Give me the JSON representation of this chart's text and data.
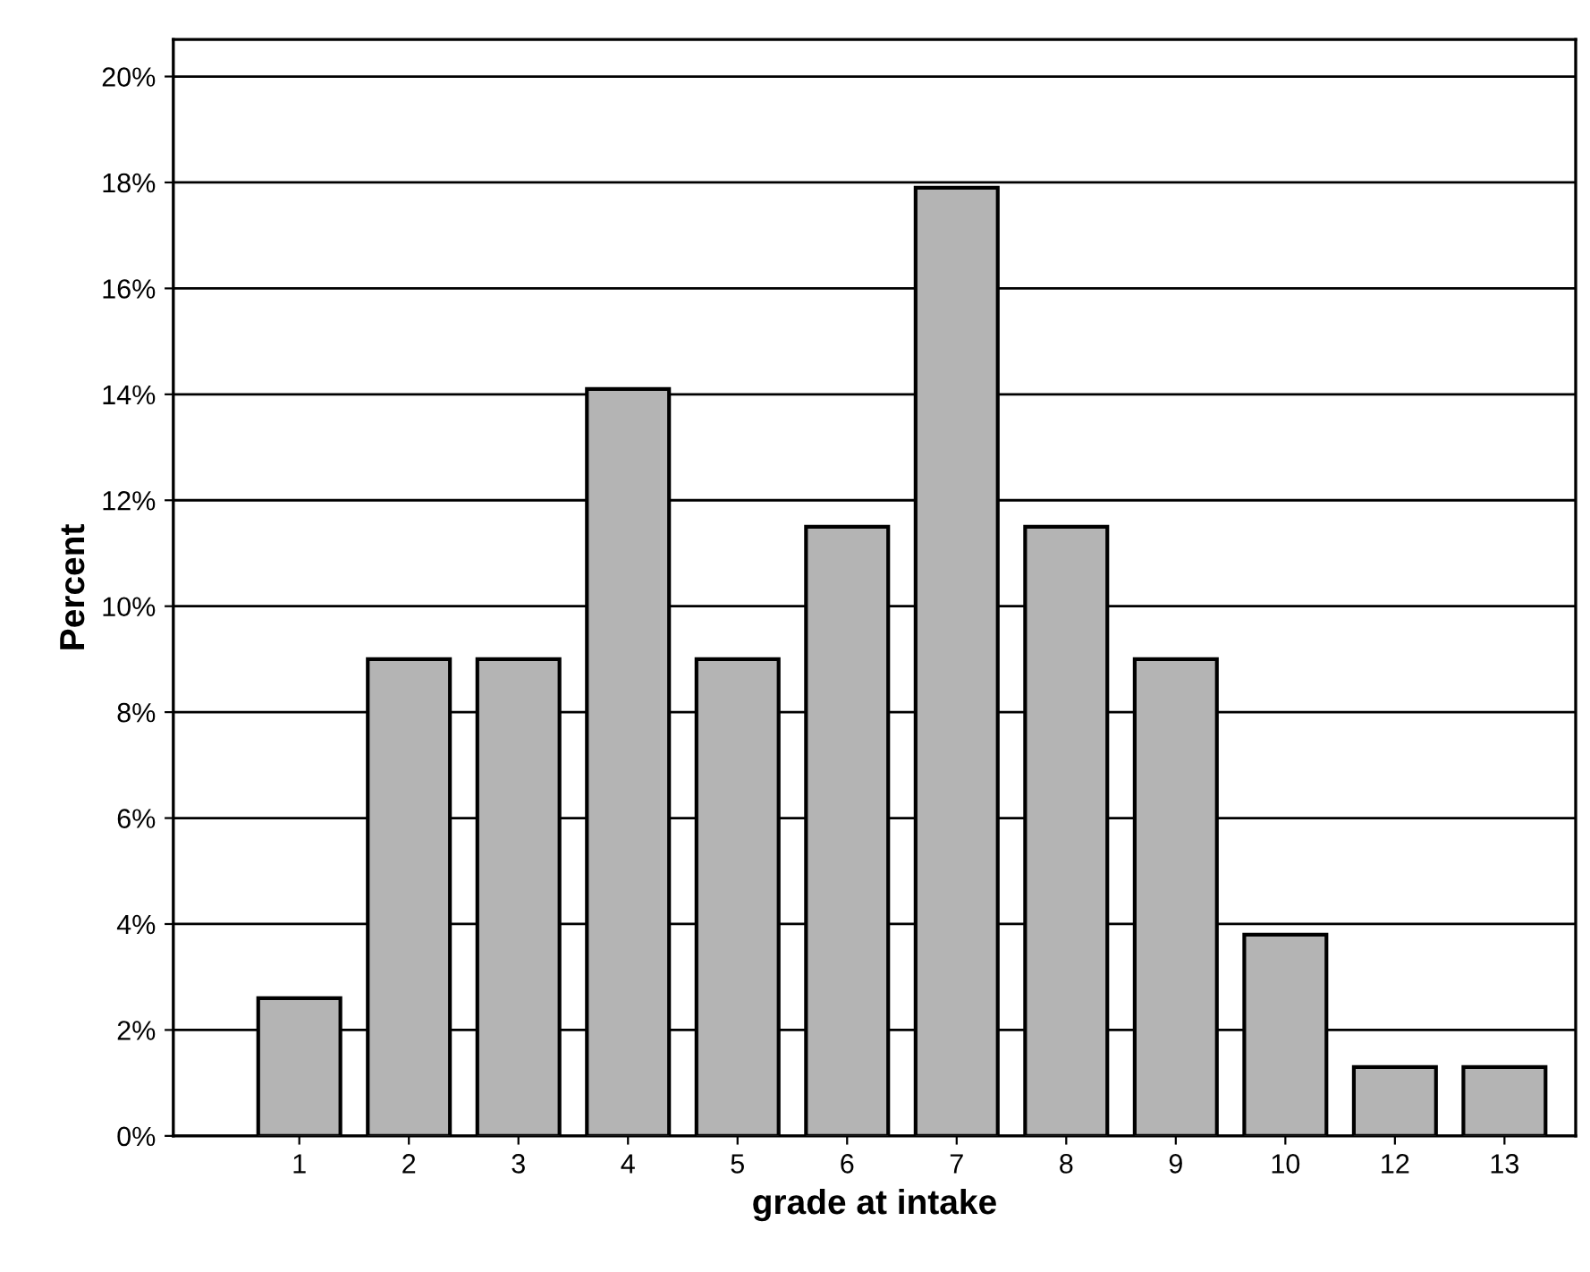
{
  "chart_data": {
    "type": "bar",
    "xlabel": "grade at intake",
    "ylabel": "Percent",
    "categories": [
      "1",
      "2",
      "3",
      "4",
      "5",
      "6",
      "7",
      "8",
      "9",
      "10",
      "12",
      "13"
    ],
    "values": [
      2.6,
      9.0,
      9.0,
      14.1,
      9.0,
      11.5,
      17.9,
      11.5,
      9.0,
      3.8,
      1.3,
      1.3
    ],
    "color": "#b4b4b4",
    "ylim": [
      0,
      20.7
    ],
    "yticks": [
      {
        "value": 0,
        "label": "0%"
      },
      {
        "value": 2,
        "label": "2%"
      },
      {
        "value": 4,
        "label": "4%"
      },
      {
        "value": 6,
        "label": "6%"
      },
      {
        "value": 8,
        "label": "8%"
      },
      {
        "value": 10,
        "label": "10%"
      },
      {
        "value": 12,
        "label": "12%"
      },
      {
        "value": 14,
        "label": "14%"
      },
      {
        "value": 16,
        "label": "16%"
      },
      {
        "value": 18,
        "label": "18%"
      },
      {
        "value": 20,
        "label": "20%"
      }
    ],
    "grid": "y"
  }
}
